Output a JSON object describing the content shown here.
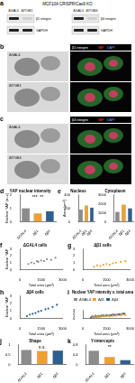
{
  "blots": {
    "panel": "a",
    "title": "MCF10A CRISPR/Cas9 KO",
    "blots": [
      {
        "columns": [
          "ΔGAL4",
          "ΔITGB1"
        ],
        "rows": [
          "β1 integrin",
          "GAPDH"
        ]
      },
      {
        "columns": [
          "ΔGAL4",
          "ΔITGB4"
        ],
        "rows": [
          "β4 integrin",
          "GAPDH"
        ]
      }
    ]
  },
  "micrographs": [
    {
      "panel": "b",
      "channels": [
        "β1 integrin",
        "YAP",
        "DAPI"
      ],
      "rows": [
        "ΔGAL4",
        "ΔITGB1"
      ]
    },
    {
      "panel": "c",
      "channels": [
        "β4 integrin",
        "YAP",
        "DAPI"
      ],
      "rows": [
        "ΔGAL4",
        "ΔITGB4"
      ]
    }
  ],
  "chart_data": [
    {
      "panel": "d",
      "type": "bar",
      "title": "YAP nuclear intensity",
      "categories": [
        "ΔGAL4",
        "Δβ1",
        "Δβ4"
      ],
      "values": [
        1.0,
        0.62,
        0.78
      ],
      "colors": [
        "#8c8c8c",
        "#f0a030",
        "#2f5f8f"
      ],
      "y_label": "Nuclear YAP (a.u.)",
      "ylim": [
        0,
        2
      ],
      "yticks": [
        0,
        1,
        2
      ],
      "grid": false,
      "annotations": [
        "***",
        "**"
      ]
    },
    {
      "panel": "e",
      "type": "bar",
      "title": "Nucleus",
      "categories": [
        "ΔGAL4",
        "Δβ1",
        "Δβ4"
      ],
      "values": [
        180,
        240,
        210
      ],
      "colors": [
        "#8c8c8c",
        "#f0a030",
        "#2f5f8f"
      ],
      "y_label": "Area (µm²)",
      "ylim": [
        0,
        400
      ],
      "yticks": [
        0,
        200,
        400
      ],
      "grid": false
    },
    {
      "type": "bar",
      "title": "Cytoplasm",
      "categories": [
        "ΔGAL4",
        "Δβ1",
        "Δβ4"
      ],
      "values": [
        1100,
        1900,
        1500
      ],
      "colors": [
        "#8c8c8c",
        "#f0a030",
        "#2f5f8f"
      ],
      "ylim": [
        0,
        3000
      ],
      "yticks": [
        0,
        1000,
        2000,
        3000
      ],
      "grid": false
    },
    {
      "panel": "f",
      "type": "scatter",
      "title": "ΔGAL4 cells",
      "x_label": "Total area (µm²)",
      "y_label": "Nuclear YAP",
      "xlim": [
        0,
        3000
      ],
      "xticks": [
        0,
        1500,
        3000
      ],
      "ylim": [
        0,
        3
      ],
      "yticks": [
        0,
        1,
        2,
        3
      ],
      "grid": false,
      "series": [
        {
          "color": "#8c8c8c",
          "x": [
            600,
            800,
            1000,
            1200,
            1300,
            1500,
            1700,
            1900,
            2200,
            2500
          ],
          "values": [
            0.8,
            1.0,
            0.9,
            1.2,
            1.1,
            1.3,
            1.2,
            1.5,
            1.4,
            1.7
          ]
        }
      ]
    },
    {
      "panel": "g",
      "type": "scatter",
      "title": "Δβ1 cells",
      "x_label": "Total area (µm²)",
      "xlim": [
        0,
        3000
      ],
      "xticks": [
        0,
        1500,
        3000
      ],
      "ylim": [
        0,
        3
      ],
      "yticks": [
        0,
        1,
        2,
        3
      ],
      "grid": false,
      "series": [
        {
          "color": "#f0a030",
          "x": [
            700,
            900,
            1100,
            1300,
            1500,
            1700,
            1900,
            2100,
            2400,
            2700
          ],
          "values": [
            0.4,
            0.6,
            0.5,
            0.7,
            0.8,
            0.7,
            0.9,
            1.0,
            1.1,
            1.2
          ]
        }
      ]
    },
    {
      "panel": "h",
      "type": "scatter",
      "title": "Δβ4 cells",
      "x_label": "Total area (µm²)",
      "y_label": "Nuclear YAP",
      "xlim": [
        0,
        3000
      ],
      "xticks": [
        0,
        1500,
        3000
      ],
      "ylim": [
        0,
        3
      ],
      "yticks": [
        0,
        1,
        2,
        3
      ],
      "grid": false,
      "series": [
        {
          "color": "#2f5f8f",
          "x": [
            500,
            700,
            900,
            1100,
            1300,
            1500,
            1800,
            2000,
            2300,
            2600
          ],
          "values": [
            0.3,
            0.5,
            0.6,
            0.7,
            0.9,
            1.0,
            1.2,
            1.3,
            1.5,
            1.8
          ]
        }
      ]
    },
    {
      "panel": "i",
      "type": "scatter",
      "title": "Nuclear YAP intensity v. total area",
      "x_label": "Total area (µm²)",
      "xlim": [
        0,
        3000
      ],
      "xticks": [
        0,
        1500,
        3000
      ],
      "ylim": [
        0,
        3
      ],
      "yticks": [
        0,
        1,
        2,
        3
      ],
      "grid": false,
      "legend": "top-left",
      "series": [
        {
          "name": "ΔGAL4",
          "color": "#8c8c8c",
          "x": [
            600,
            800,
            1000,
            1200,
            1300,
            1500,
            1700,
            1900,
            2200,
            2500
          ],
          "values": [
            0.8,
            1.0,
            0.9,
            1.2,
            1.1,
            1.3,
            1.2,
            1.5,
            1.4,
            1.7
          ]
        },
        {
          "name": "Δβ1",
          "color": "#f0a030",
          "x": [
            700,
            900,
            1100,
            1300,
            1500,
            1700,
            1900,
            2100,
            2400,
            2700
          ],
          "values": [
            0.4,
            0.6,
            0.5,
            0.7,
            0.8,
            0.7,
            0.9,
            1.0,
            1.1,
            1.2
          ]
        },
        {
          "name": "Δβ4",
          "color": "#2f5f8f",
          "x": [
            500,
            700,
            900,
            1100,
            1300,
            1500,
            1800,
            2000,
            2300,
            2600
          ],
          "values": [
            0.3,
            0.5,
            0.6,
            0.7,
            0.9,
            1.0,
            1.2,
            1.3,
            1.5,
            1.8
          ]
        },
        {
          "type": "line",
          "color": "#8c8c8c",
          "x": [
            500,
            2700
          ],
          "values": [
            0.75,
            1.65
          ]
        },
        {
          "type": "line",
          "color": "#f0a030",
          "x": [
            500,
            2700
          ],
          "values": [
            0.35,
            1.25
          ]
        },
        {
          "type": "line",
          "color": "#2f5f8f",
          "x": [
            500,
            2700
          ],
          "values": [
            0.2,
            1.8
          ]
        }
      ]
    },
    {
      "panel": "j",
      "type": "bar",
      "title": "Shape",
      "categories": [
        "ΔGAL4",
        "Δβ1",
        "Δβ4"
      ],
      "values": [
        0.72,
        0.68,
        0.7
      ],
      "colors": [
        "#8c8c8c",
        "#f0a030",
        "#2f5f8f"
      ],
      "ylim": [
        0,
        1
      ],
      "yticks": [
        0,
        0.5,
        1
      ],
      "grid": false,
      "annotations": [
        "n.s."
      ]
    },
    {
      "panel": "k",
      "type": "bar",
      "title": "Y-intercepts",
      "categories": [
        "ΔGAL4",
        "Δβ1",
        "Δβ4"
      ],
      "values": [
        0.55,
        0.3,
        0.18
      ],
      "colors": [
        "#8c8c8c",
        "#f0a030",
        "#2f5f8f"
      ],
      "ylim": [
        0,
        0.8
      ],
      "yticks": [
        0,
        0.4,
        0.8
      ],
      "grid": false,
      "annotations": [
        "**"
      ]
    }
  ]
}
